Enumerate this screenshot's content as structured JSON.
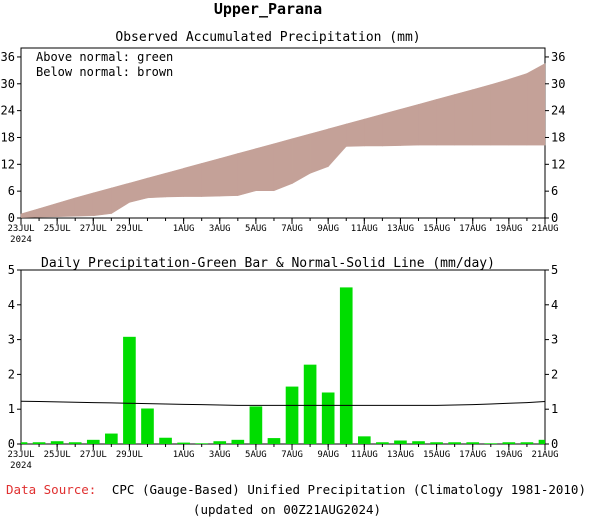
{
  "page": {
    "title": "Upper_Parana",
    "source_label": "Data Source:",
    "source_text": "CPC (Gauge-Based) Unified Precipitation (Climatology 1981-2010)",
    "updated": "(updated on 00Z21AUG2024)"
  },
  "colors": {
    "above_normal": "#008000",
    "below_normal": "#c4a198",
    "bars": "#00dd00",
    "normal_line": "#000000",
    "source_label": "#e03030"
  },
  "chart_data": [
    {
      "type": "area",
      "title": "Observed Accumulated Precipitation (mm)",
      "annotations": [
        "Above normal: green",
        "Below normal: brown"
      ],
      "x_tick_labels": [
        "23JUL",
        "25JUL",
        "27JUL",
        "29JUL",
        "1AUG",
        "3AUG",
        "5AUG",
        "7AUG",
        "9AUG",
        "11AUG",
        "13AUG",
        "15AUG",
        "17AUG",
        "19AUG",
        "21AUG"
      ],
      "x_tick_days": [
        0,
        2,
        4,
        6,
        9,
        11,
        13,
        15,
        17,
        19,
        21,
        23,
        25,
        27,
        29
      ],
      "x_year_label": "2024",
      "xlim": [
        0,
        29
      ],
      "ylim": [
        0,
        38
      ],
      "yticks": [
        0,
        6,
        12,
        18,
        24,
        30,
        36
      ],
      "series": [
        {
          "key": "normal",
          "x": [
            0,
            1,
            2,
            3,
            4,
            5,
            6,
            7,
            8,
            9,
            10,
            11,
            12,
            13,
            14,
            15,
            16,
            17,
            18,
            19,
            20,
            21,
            22,
            23,
            24,
            25,
            26,
            27,
            28,
            29
          ],
          "values": [
            0.9,
            2.1,
            3.3,
            4.5,
            5.6,
            6.7,
            7.8,
            8.9,
            10.0,
            11.1,
            12.2,
            13.3,
            14.4,
            15.5,
            16.6,
            17.7,
            18.8,
            19.9,
            21.0,
            22.1,
            23.2,
            24.3,
            25.4,
            26.5,
            27.6,
            28.7,
            29.8,
            31.0,
            32.3,
            34.5
          ]
        },
        {
          "key": "observed",
          "x": [
            0,
            1,
            2,
            3,
            4,
            5,
            6,
            7,
            8,
            9,
            10,
            11,
            12,
            13,
            14,
            15,
            16,
            17,
            18,
            19,
            20,
            21,
            22,
            23,
            24,
            25,
            26,
            27,
            28,
            29
          ],
          "values": [
            0.1,
            0.2,
            0.3,
            0.4,
            0.5,
            1.0,
            3.5,
            4.5,
            4.7,
            4.8,
            4.8,
            4.9,
            5.0,
            6.1,
            6.1,
            7.7,
            10.0,
            11.5,
            16.0,
            16.1,
            16.1,
            16.2,
            16.3,
            16.3,
            16.3,
            16.3,
            16.3,
            16.3,
            16.3,
            16.3
          ]
        }
      ]
    },
    {
      "type": "bar",
      "title": "Daily Precipitation-Green Bar & Normal-Solid Line (mm/day)",
      "x_tick_labels": [
        "23JUL",
        "25JUL",
        "27JUL",
        "29JUL",
        "1AUG",
        "3AUG",
        "5AUG",
        "7AUG",
        "9AUG",
        "11AUG",
        "13AUG",
        "15AUG",
        "17AUG",
        "19AUG",
        "21AUG"
      ],
      "x_tick_days": [
        0,
        2,
        4,
        6,
        9,
        11,
        13,
        15,
        17,
        19,
        21,
        23,
        25,
        27,
        29
      ],
      "x_year_label": "2024",
      "xlim": [
        0,
        29
      ],
      "ylim": [
        0,
        5
      ],
      "yticks": [
        0,
        1,
        2,
        3,
        4,
        5
      ],
      "daily_precip": [
        0.05,
        0.05,
        0.08,
        0.05,
        0.12,
        0.3,
        3.08,
        1.02,
        0.18,
        0.04,
        0.02,
        0.08,
        0.12,
        1.08,
        0.17,
        1.65,
        2.28,
        1.48,
        4.5,
        0.22,
        0.05,
        0.1,
        0.08,
        0.05,
        0.05,
        0.05,
        0.02,
        0.05,
        0.05,
        0.12
      ],
      "normal": [
        1.23,
        1.22,
        1.21,
        1.2,
        1.19,
        1.18,
        1.17,
        1.16,
        1.15,
        1.14,
        1.13,
        1.12,
        1.11,
        1.11,
        1.11,
        1.11,
        1.11,
        1.11,
        1.11,
        1.11,
        1.11,
        1.11,
        1.11,
        1.11,
        1.12,
        1.13,
        1.15,
        1.17,
        1.19,
        1.22
      ]
    }
  ]
}
